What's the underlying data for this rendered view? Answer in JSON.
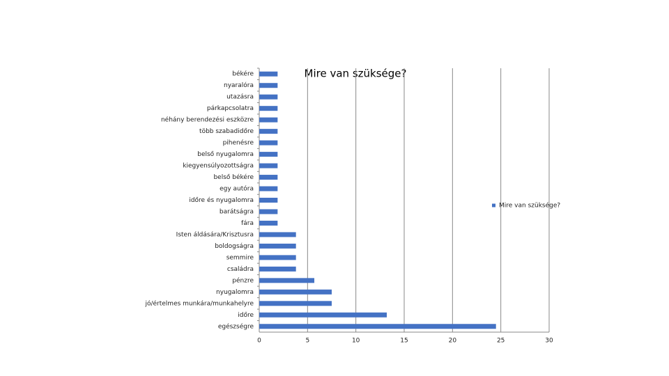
{
  "chart_data": {
    "type": "hbar",
    "title": "Mire van szüksége?",
    "categories": [
      "békére",
      "nyaralóra",
      "utazásra",
      "párkapcsolatra",
      "néhány berendezési eszközre",
      "több szabadidőre",
      "pihenésre",
      "belső nyugalomra",
      "kiegyensúlyozottságra",
      "belső békére",
      "egy autóra",
      "időre és nyugalomra",
      "barátságra",
      "fára",
      "Isten áldására/Krisztusra",
      "boldogságra",
      "semmire",
      "családra",
      "pénzre",
      "nyugalomra",
      "jó/értelmes munkára/munkahelyre",
      "időre",
      "egészségre"
    ],
    "series": [
      {
        "name": "Mire van szüksége?",
        "color": "#4472c4",
        "values": [
          1.9,
          1.9,
          1.9,
          1.9,
          1.9,
          1.9,
          1.9,
          1.9,
          1.9,
          1.9,
          1.9,
          1.9,
          1.9,
          1.9,
          3.8,
          3.8,
          3.8,
          3.8,
          5.7,
          7.5,
          7.5,
          13.2,
          24.5
        ]
      }
    ],
    "xlim": [
      0,
      30
    ],
    "xticks": [
      0,
      5,
      10,
      15,
      20,
      25,
      30
    ],
    "grid": true,
    "legend": "right"
  }
}
